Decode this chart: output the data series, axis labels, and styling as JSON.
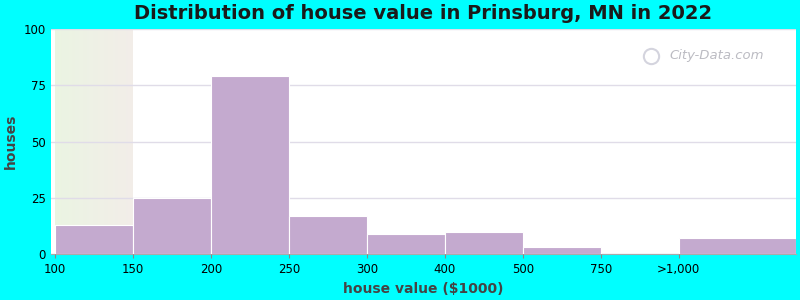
{
  "title": "Distribution of house value in Prinsburg, MN in 2022",
  "xlabel": "house value ($1000)",
  "ylabel": "houses",
  "bar_values": [
    13,
    25,
    79,
    17,
    9,
    10,
    3,
    0,
    7
  ],
  "bar_color": "#c4aacf",
  "bar_edge_color": "#ffffff",
  "ylim": [
    0,
    100
  ],
  "yticks": [
    0,
    25,
    50,
    75,
    100
  ],
  "xtick_labels": [
    "100",
    "150",
    "200",
    "250",
    "300",
    "400",
    "500",
    "750",
    ">1,000"
  ],
  "bg_outer": "#00FFFF",
  "title_fontsize": 14,
  "axis_label_fontsize": 10,
  "tick_fontsize": 8.5,
  "watermark_text": "City-Data.com",
  "grid_color": "#e0dce8",
  "grid_alpha": 1.0
}
